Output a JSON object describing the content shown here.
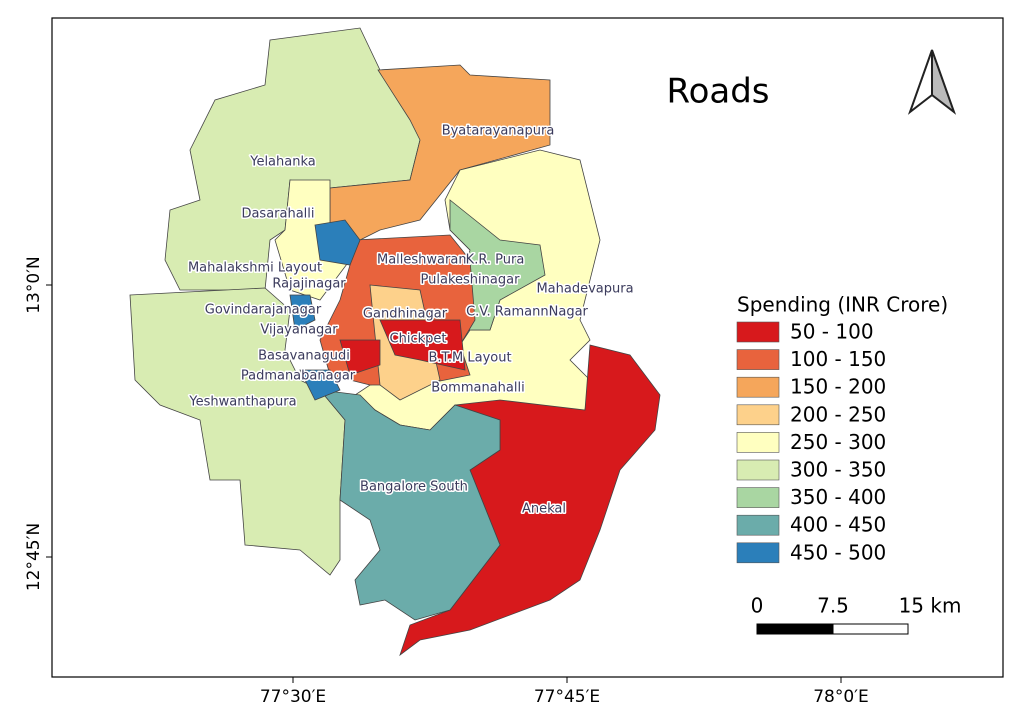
{
  "map": {
    "title": "Roads",
    "legend": {
      "title": "Spending (INR Crore)",
      "items": [
        {
          "label": "50 - 100",
          "color": "#d7191c"
        },
        {
          "label": "100 - 150",
          "color": "#e8633d"
        },
        {
          "label": "150 - 200",
          "color": "#f5a65b"
        },
        {
          "label": "200 - 250",
          "color": "#fdd18b"
        },
        {
          "label": "250 - 300",
          "color": "#ffffc0"
        },
        {
          "label": "300 - 350",
          "color": "#d8ecb2"
        },
        {
          "label": "350 - 400",
          "color": "#a9d6a2"
        },
        {
          "label": "400 - 450",
          "color": "#6bacaa"
        },
        {
          "label": "450 - 500",
          "color": "#2b7fba"
        }
      ]
    },
    "regions": [
      "Byatarayanapura",
      "Yelahanka",
      "Dasarahalli",
      "Malleshwaram",
      "K.R. Pura",
      "Mahalakshmi Layout",
      "Pulakeshinagar",
      "Mahadevapura",
      "Rajajinagar",
      "Govindarajanagar",
      "Gandhinagar",
      "C.V. RamannNagar",
      "Vijayanagar",
      "Chickpet",
      "Basavanagudi",
      "B.T.M Layout",
      "Padmanabanagar",
      "Bommanahalli",
      "Yeshwanthapura",
      "Bangalore South",
      "Anekal"
    ],
    "x_ticks": [
      "77°30′E",
      "77°45′E",
      "78°0′E"
    ],
    "y_ticks": [
      "13°0′N",
      "12°45′N"
    ],
    "scale_bar": [
      "0",
      "7.5",
      "15 km"
    ]
  }
}
